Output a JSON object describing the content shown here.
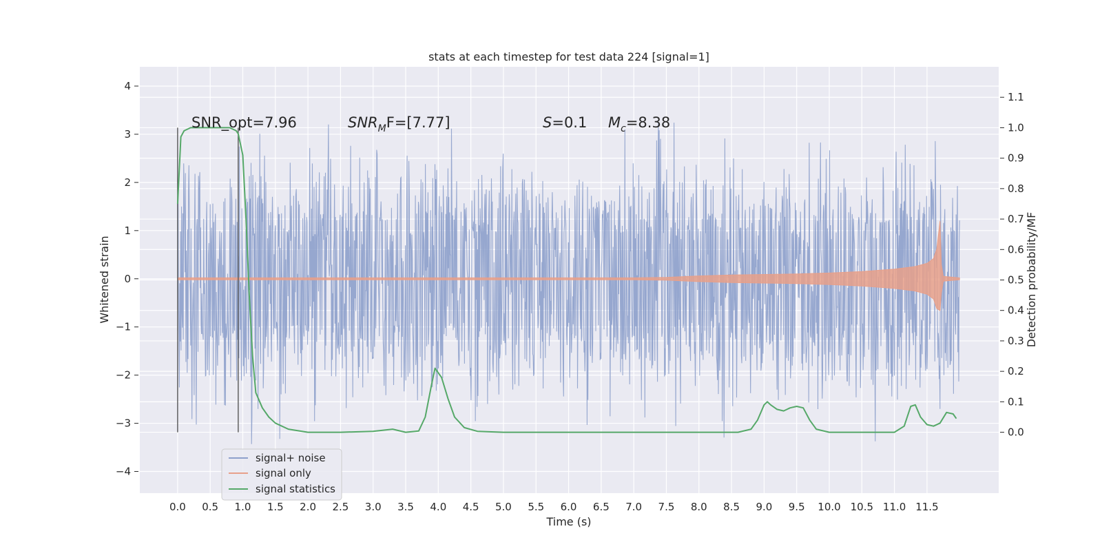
{
  "chart_data": {
    "type": "line",
    "title": "stats at each timestep for test data 224 [signal=1]",
    "xlabel": "Time (s)",
    "ylabel": "Whitened strain",
    "ylabel_right": "Detection probability/MF",
    "xlim": [
      -0.58,
      12.6
    ],
    "ylim": [
      -4.45,
      4.4
    ],
    "ylim_right": [
      -0.2,
      1.2
    ],
    "x_ticks": [
      "0.0",
      "0.5",
      "1.0",
      "1.5",
      "2.0",
      "2.5",
      "3.0",
      "3.5",
      "4.0",
      "4.5",
      "5.0",
      "5.5",
      "6.0",
      "6.5",
      "7.0",
      "7.5",
      "8.0",
      "8.5",
      "9.0",
      "9.5",
      "10.0",
      "10.5",
      "11.0",
      "11.5"
    ],
    "y_ticks": [
      "−4",
      "−3",
      "−2",
      "−1",
      "0",
      "1",
      "2",
      "3",
      "4"
    ],
    "y_ticks_right": [
      "0.0",
      "0.1",
      "0.2",
      "0.3",
      "0.4",
      "0.5",
      "0.6",
      "0.7",
      "0.8",
      "0.9",
      "1.0",
      "1.1"
    ],
    "grid": true,
    "annotations": [
      {
        "text": "SNR_opt=7.96"
      },
      {
        "text": "SNR",
        "sub": "M",
        "rest": "F=[7.77]"
      },
      {
        "text": "S",
        "rest": "=0.1"
      },
      {
        "text": "M",
        "sub": "c",
        "rest": "=8.38"
      }
    ],
    "vertical_markers": [
      0.0,
      0.93
    ],
    "legend_position": "lower-left",
    "series": [
      {
        "name": "signal+ noise",
        "color": "#8da0cb",
        "kind": "noise",
        "x_range": [
          0.0,
          12.0
        ],
        "amplitude_typical": 1.3,
        "amplitude_peak": 4.0
      },
      {
        "name": "signal only",
        "color": "#e8a08a",
        "kind": "chirp",
        "x": [
          0.0,
          2.0,
          4.0,
          6.0,
          7.0,
          7.5,
          8.0,
          8.5,
          9.0,
          9.5,
          10.0,
          10.5,
          11.0,
          11.3,
          11.5,
          11.6,
          11.65,
          11.7,
          11.72,
          11.75,
          12.0
        ],
        "envelope": [
          0.02,
          0.02,
          0.02,
          0.02,
          0.02,
          0.03,
          0.06,
          0.08,
          0.09,
          0.1,
          0.12,
          0.15,
          0.2,
          0.25,
          0.32,
          0.42,
          0.62,
          1.2,
          0.3,
          0.05,
          0.02
        ]
      },
      {
        "name": "signal statistics",
        "color": "#55a868",
        "kind": "line",
        "axis": "right",
        "x": [
          0.0,
          0.05,
          0.1,
          0.2,
          0.3,
          0.5,
          0.7,
          0.8,
          0.9,
          0.93,
          1.0,
          1.05,
          1.1,
          1.15,
          1.2,
          1.3,
          1.4,
          1.5,
          1.7,
          2.0,
          2.5,
          3.0,
          3.3,
          3.5,
          3.7,
          3.8,
          3.9,
          3.95,
          4.05,
          4.15,
          4.25,
          4.4,
          4.6,
          5.0,
          6.0,
          7.0,
          8.0,
          8.6,
          8.8,
          8.9,
          9.0,
          9.05,
          9.1,
          9.2,
          9.3,
          9.4,
          9.5,
          9.6,
          9.7,
          9.8,
          10.0,
          10.5,
          11.0,
          11.15,
          11.25,
          11.32,
          11.4,
          11.5,
          11.6,
          11.7,
          11.8,
          11.9,
          11.95
        ],
        "y": [
          0.75,
          0.97,
          0.99,
          1.0,
          1.0,
          1.0,
          1.0,
          1.0,
          0.99,
          0.98,
          0.91,
          0.7,
          0.45,
          0.25,
          0.13,
          0.08,
          0.05,
          0.03,
          0.01,
          0.0,
          0.0,
          0.003,
          0.01,
          0.0,
          0.004,
          0.05,
          0.16,
          0.21,
          0.18,
          0.11,
          0.05,
          0.015,
          0.003,
          0.0,
          0.0,
          0.0,
          0.0,
          0.0,
          0.01,
          0.04,
          0.09,
          0.1,
          0.09,
          0.075,
          0.07,
          0.08,
          0.085,
          0.08,
          0.04,
          0.01,
          0.0,
          0.0,
          0.0,
          0.02,
          0.085,
          0.09,
          0.05,
          0.025,
          0.02,
          0.03,
          0.065,
          0.06,
          0.045
        ]
      }
    ]
  }
}
